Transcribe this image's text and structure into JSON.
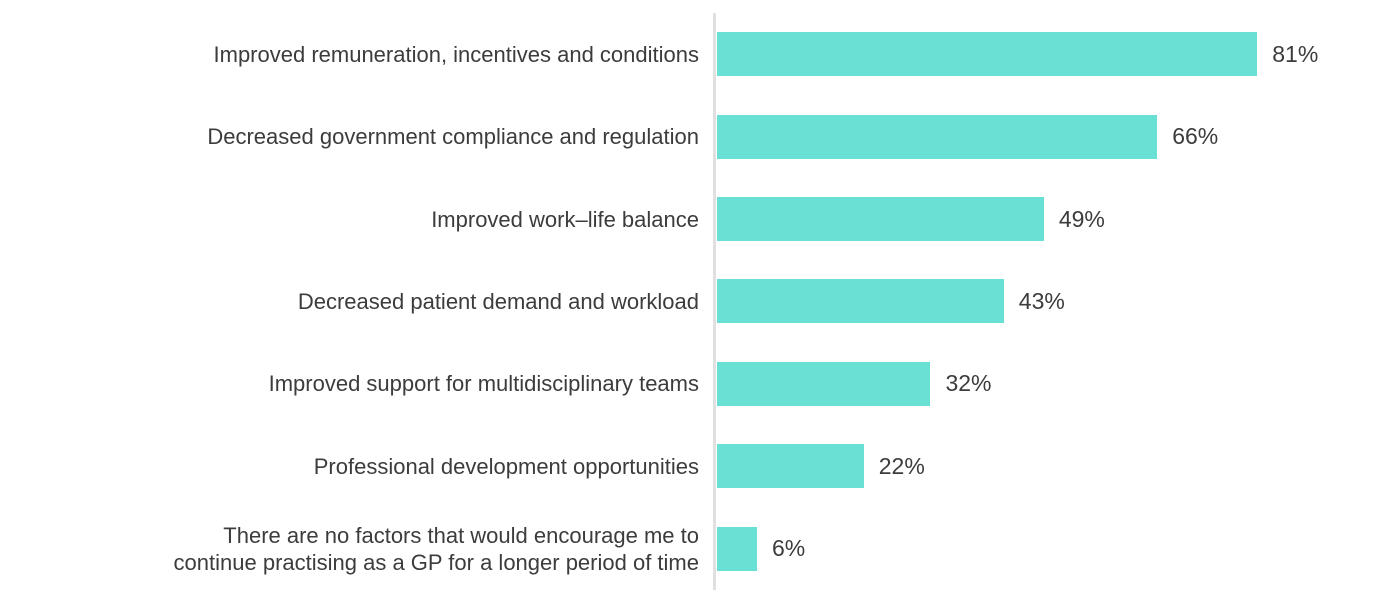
{
  "chart_data": {
    "type": "bar",
    "orientation": "horizontal",
    "title": "",
    "xlabel": "",
    "ylabel": "",
    "xlim": [
      0,
      100
    ],
    "grid": false,
    "legend": false,
    "bar_color": "#68e0d3",
    "axis_line_color": "#e0e0e0",
    "text_color": "#3c3c3c",
    "categories": [
      "Improved remuneration, incentives and conditions",
      "Decreased government compliance and regulation",
      "Improved work–life balance",
      "Decreased patient demand and workload",
      "Improved support for multidisciplinary teams",
      "Professional development opportunities",
      "There are no factors that would encourage me to\ncontinue practising as a GP for a longer period of time"
    ],
    "values": [
      81,
      66,
      49,
      43,
      32,
      22,
      6
    ],
    "value_labels": [
      "81%",
      "66%",
      "49%",
      "43%",
      "32%",
      "22%",
      "6%"
    ]
  }
}
